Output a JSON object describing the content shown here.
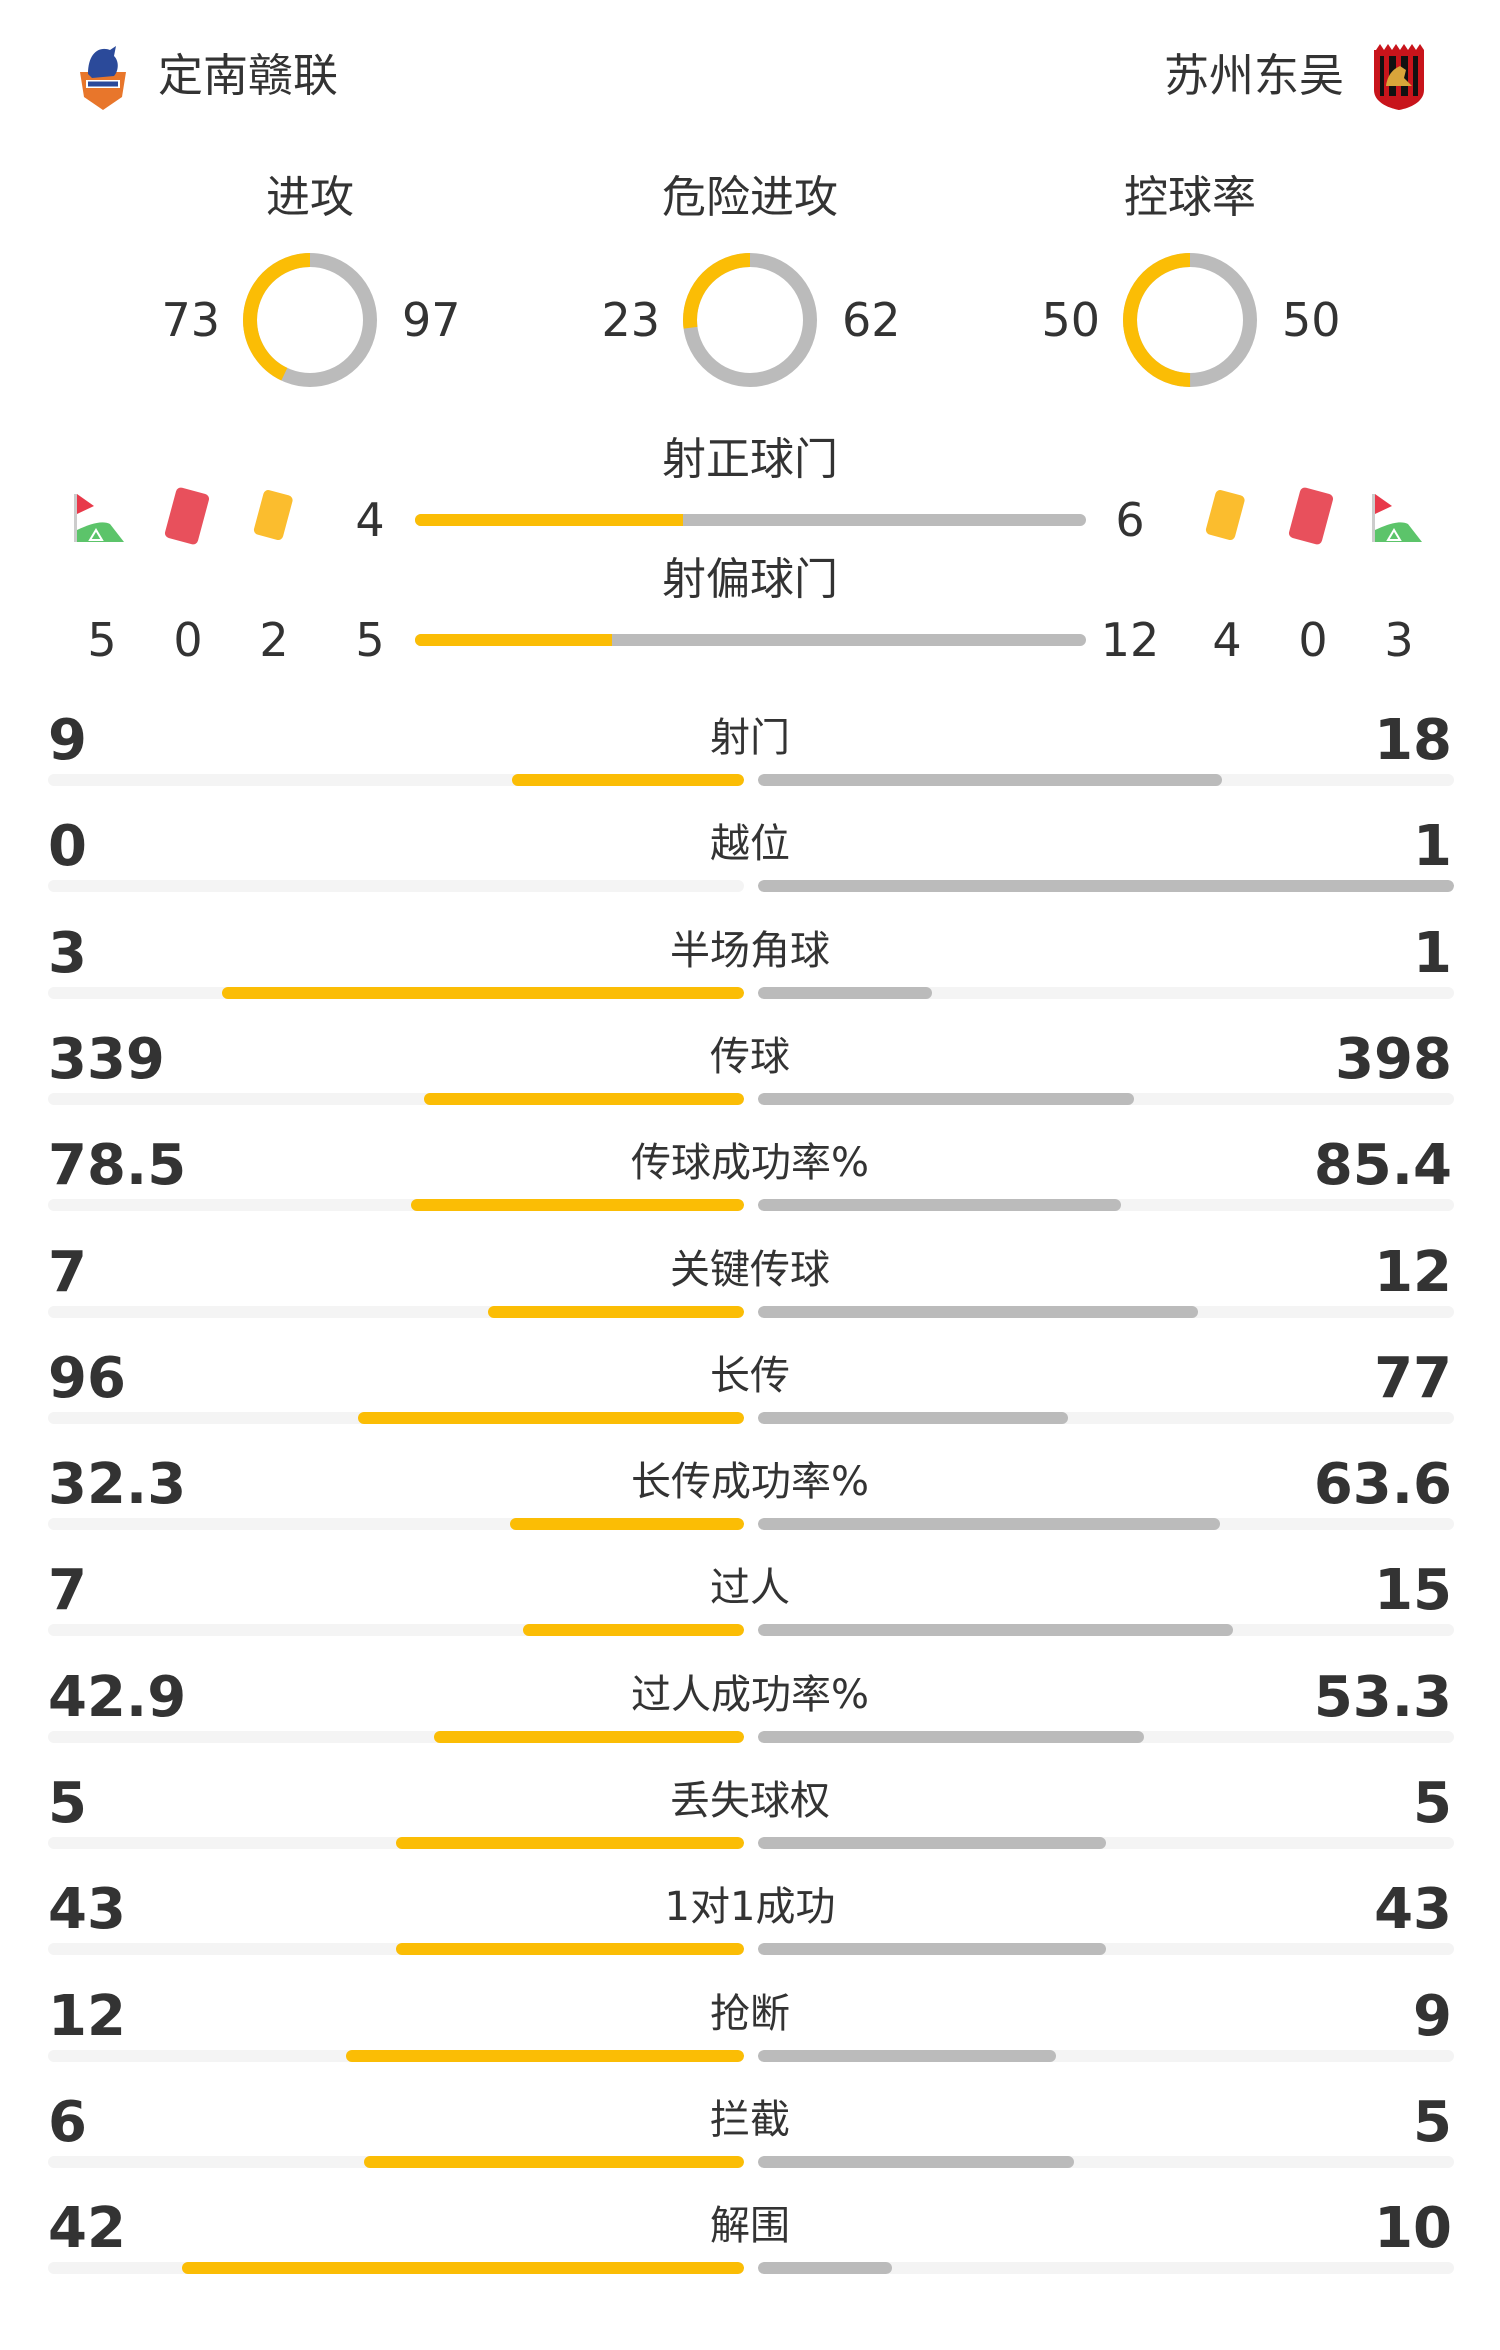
{
  "home": {
    "name": "定南赣联",
    "logo": "dingnan-ganlian-crest"
  },
  "away": {
    "name": "苏州东吴",
    "logo": "suzhou-dongwu-crest"
  },
  "colors": {
    "home": "#fbbd05",
    "away": "#bbbbbb",
    "track": "#f4f4f4"
  },
  "circles": [
    {
      "label": "进攻",
      "home": 73,
      "away": 97
    },
    {
      "label": "危险进攻",
      "home": 23,
      "away": 62
    },
    {
      "label": "控球率",
      "home": 50,
      "away": 50
    }
  ],
  "shots_on_target": {
    "label": "射正球门",
    "home": 4,
    "away": 6
  },
  "shots_off_target": {
    "label": "射偏球门",
    "home": 5,
    "away": 12
  },
  "home_counts": {
    "corners": 5,
    "red_cards": 0,
    "yellow_cards": 2
  },
  "away_counts": {
    "yellow_cards": 4,
    "red_cards": 0,
    "corners": 3
  },
  "icons": {
    "corner": "corner-flag-icon",
    "red": "red-card-icon",
    "yellow": "yellow-card-icon"
  },
  "stats": [
    {
      "label": "射门",
      "home": "9",
      "away": "18"
    },
    {
      "label": "越位",
      "home": "0",
      "away": "1"
    },
    {
      "label": "半场角球",
      "home": "3",
      "away": "1"
    },
    {
      "label": "传球",
      "home": "339",
      "away": "398"
    },
    {
      "label": "传球成功率%",
      "home": "78.5",
      "away": "85.4"
    },
    {
      "label": "关键传球",
      "home": "7",
      "away": "12"
    },
    {
      "label": "长传",
      "home": "96",
      "away": "77"
    },
    {
      "label": "长传成功率%",
      "home": "32.3",
      "away": "63.6"
    },
    {
      "label": "过人",
      "home": "7",
      "away": "15"
    },
    {
      "label": "过人成功率%",
      "home": "42.9",
      "away": "53.3"
    },
    {
      "label": "丢失球权",
      "home": "5",
      "away": "5"
    },
    {
      "label": "1对1成功",
      "home": "43",
      "away": "43"
    },
    {
      "label": "抢断",
      "home": "12",
      "away": "9"
    },
    {
      "label": "拦截",
      "home": "6",
      "away": "5"
    },
    {
      "label": "解围",
      "home": "42",
      "away": "10"
    }
  ]
}
